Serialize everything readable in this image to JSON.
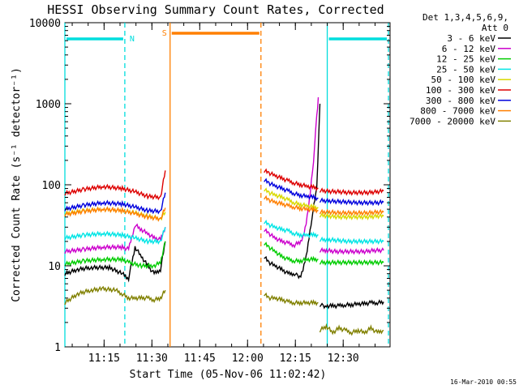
{
  "chart_data": {
    "type": "line",
    "title": "HESSI Observing Summary Count Rates, Corrected",
    "xlabel": "Start Time (05-Nov-06 11:02:42)",
    "ylabel": "Corrected Count Rate (s⁻¹ detector⁻¹)",
    "yscale": "log",
    "ylim": [
      1,
      10000
    ],
    "xlim_minutes": [
      0,
      102
    ],
    "x_ticks": [
      {
        "label": "11:15",
        "minute": 12.3
      },
      {
        "label": "11:30",
        "minute": 27.3
      },
      {
        "label": "11:45",
        "minute": 42.3
      },
      {
        "label": "12:00",
        "minute": 57.3
      },
      {
        "label": "12:15",
        "minute": 72.3
      },
      {
        "label": "12:30",
        "minute": 87.3
      }
    ],
    "y_ticks": [
      {
        "label": "1",
        "value": 1
      },
      {
        "label": "10",
        "value": 10
      },
      {
        "label": "100",
        "value": 100
      },
      {
        "label": "1000",
        "value": 1000
      },
      {
        "label": "10000",
        "value": 10000
      }
    ],
    "legend": {
      "header": [
        "Det 1,3,4,5,6,9,",
        "Att 0"
      ],
      "placement": "right"
    },
    "series": [
      {
        "name": "3 - 6 keV",
        "color": "#000000",
        "segments": [
          {
            "x": [
              0,
              4,
              8,
              14,
              18,
              20,
              22,
              24,
              26,
              28,
              30,
              31.5
            ],
            "y": [
              8,
              9,
              9.5,
              9.5,
              8,
              7,
              17,
              13,
              10,
              8,
              9,
              20
            ]
          },
          {
            "x": [
              62.5,
              64,
              66,
              68,
              70,
              72,
              73,
              74,
              75,
              76,
              77.5,
              79,
              80
            ],
            "y": [
              13,
              11,
              10,
              9,
              8,
              8,
              7.5,
              7.5,
              10,
              15,
              40,
              90,
              1000
            ]
          },
          {
            "x": [
              80,
              81,
              82,
              84,
              86,
              88,
              90,
              92,
              94,
              96,
              98,
              100
            ],
            "y": [
              3.3,
              3.2,
              3.2,
              3.2,
              3.2,
              3.3,
              3.3,
              3.4,
              3.4,
              3.5,
              3.5,
              3.6
            ]
          }
        ]
      },
      {
        "name": "6 - 12 keV",
        "color": "#cc00cc",
        "segments": [
          {
            "x": [
              0,
              6,
              12,
              18,
              20,
              22,
              24,
              26,
              28,
              30,
              31.5
            ],
            "y": [
              15,
              16,
              17,
              17,
              16,
              32,
              28,
              25,
              22,
              21,
              30
            ]
          },
          {
            "x": [
              62.5,
              64,
              66,
              68,
              70,
              72,
              74,
              75,
              76,
              77,
              78,
              79,
              79.5
            ],
            "y": [
              28,
              25,
              22,
              20,
              19,
              18,
              20,
              25,
              40,
              80,
              200,
              700,
              1200
            ]
          },
          {
            "x": [
              80,
              82,
              85,
              88,
              91,
              94,
              97,
              100
            ],
            "y": [
              15.5,
              15.5,
              15,
              15,
              15,
              15,
              15.5,
              15.5
            ]
          }
        ]
      },
      {
        "name": "12 - 25 keV",
        "color": "#00cc00",
        "segments": [
          {
            "x": [
              0,
              6,
              12,
              18,
              20,
              24,
              28,
              30,
              31.5
            ],
            "y": [
              10.5,
              11.5,
              12,
              12,
              11,
              10,
              10,
              11,
              20
            ]
          },
          {
            "x": [
              62.5,
              64,
              66,
              68,
              70,
              72,
              74,
              76,
              78,
              79.5
            ],
            "y": [
              19,
              17,
              15,
              13,
              12,
              11.5,
              11.5,
              12,
              12,
              12
            ]
          },
          {
            "x": [
              80,
              83,
              86,
              89,
              92,
              95,
              98,
              100
            ],
            "y": [
              11,
              11,
              11,
              11,
              11,
              11,
              11,
              11
            ]
          }
        ]
      },
      {
        "name": "25 - 50 keV",
        "color": "#00e5e5",
        "segments": [
          {
            "x": [
              0,
              6,
              12,
              18,
              22,
              26,
              30,
              31.5
            ],
            "y": [
              22,
              24,
              25,
              24,
              22,
              20,
              20,
              30
            ]
          },
          {
            "x": [
              62.5,
              64,
              66,
              68,
              70,
              72,
              74,
              76,
              78,
              79.5
            ],
            "y": [
              35,
              32,
              30,
              28,
              27,
              25,
              24,
              24,
              24,
              24
            ]
          },
          {
            "x": [
              80,
              83,
              86,
              89,
              92,
              95,
              98,
              100
            ],
            "y": [
              21,
              21,
              20.5,
              20,
              20,
              20,
              20,
              20
            ]
          }
        ]
      },
      {
        "name": "50 - 100 keV",
        "color": "#d9d900",
        "segments": [
          {
            "x": [
              0,
              6,
              12,
              18,
              22,
              26,
              30,
              31.5
            ],
            "y": [
              44,
              48,
              50,
              48,
              45,
              41,
              38,
              46
            ]
          },
          {
            "x": [
              62.5,
              64,
              66,
              68,
              70,
              72,
              74,
              76,
              78,
              79.5
            ],
            "y": [
              88,
              80,
              75,
              70,
              65,
              60,
              57,
              55,
              53,
              52
            ]
          },
          {
            "x": [
              80,
              83,
              86,
              89,
              92,
              95,
              98,
              100
            ],
            "y": [
              42,
              41,
              40,
              40,
              40,
              40,
              41,
              41
            ]
          }
        ]
      },
      {
        "name": "100 - 300 keV",
        "color": "#dd0000",
        "segments": [
          {
            "x": [
              0,
              6,
              12,
              18,
              22,
              26,
              30,
              31.5
            ],
            "y": [
              78,
              88,
              95,
              90,
              82,
              72,
              70,
              150
            ]
          },
          {
            "x": [
              62.5,
              64,
              66,
              68,
              70,
              72,
              74,
              76,
              78,
              79.5
            ],
            "y": [
              150,
              140,
              130,
              120,
              112,
              105,
              100,
              96,
              93,
              90
            ]
          },
          {
            "x": [
              80,
              83,
              86,
              89,
              92,
              95,
              98,
              100
            ],
            "y": [
              85,
              83,
              82,
              80,
              80,
              80,
              82,
              84
            ]
          }
        ]
      },
      {
        "name": "300 - 800 keV",
        "color": "#0000dd",
        "segments": [
          {
            "x": [
              0,
              6,
              12,
              18,
              22,
              26,
              30,
              31.5
            ],
            "y": [
              50,
              56,
              60,
              58,
              53,
              48,
              47,
              80
            ]
          },
          {
            "x": [
              62.5,
              64,
              66,
              68,
              70,
              72,
              74,
              76,
              78,
              79.5
            ],
            "y": [
              115,
              105,
              97,
              90,
              84,
              78,
              74,
              72,
              70,
              68
            ]
          },
          {
            "x": [
              80,
              83,
              86,
              89,
              92,
              95,
              98,
              100
            ],
            "y": [
              64,
              63,
              62,
              61,
              60,
              60,
              60,
              61
            ]
          }
        ]
      },
      {
        "name": "800 - 7000 keV",
        "color": "#ff7f00",
        "segments": [
          {
            "x": [
              0,
              6,
              12,
              18,
              22,
              26,
              30,
              31.5
            ],
            "y": [
              43,
              47,
              50,
              48,
              44,
              40,
              38,
              52
            ]
          },
          {
            "x": [
              62.5,
              64,
              66,
              68,
              70,
              72,
              74,
              76,
              78,
              79.5
            ],
            "y": [
              70,
              65,
              61,
              58,
              55,
              53,
              51,
              50,
              49,
              48
            ]
          },
          {
            "x": [
              80,
              83,
              86,
              89,
              92,
              95,
              98,
              100
            ],
            "y": [
              46,
              46,
              45,
              45,
              45,
              45,
              46,
              46
            ]
          }
        ]
      },
      {
        "name": "7000 - 20000 keV",
        "color": "#808000",
        "segments": [
          {
            "x": [
              0,
              4,
              8,
              12,
              16,
              18,
              20,
              22,
              24,
              26,
              28,
              30,
              31.5
            ],
            "y": [
              3.5,
              4.5,
              5,
              5.2,
              5,
              4.5,
              4,
              4,
              4,
              4,
              3.8,
              4,
              5
            ]
          },
          {
            "x": [
              62.5,
              64,
              66,
              68,
              70,
              72,
              74,
              76,
              78,
              79.5
            ],
            "y": [
              4.5,
              4,
              4,
              3.8,
              3.6,
              3.5,
              3.5,
              3.5,
              3.5,
              3.5
            ]
          },
          {
            "x": [
              80,
              82,
              84,
              86,
              88,
              90,
              92,
              94,
              96,
              98,
              100
            ],
            "y": [
              1.6,
              1.8,
              1.5,
              1.7,
              1.6,
              1.5,
              1.6,
              1.5,
              1.7,
              1.5,
              1.6
            ]
          }
        ]
      }
    ],
    "annotations": [
      {
        "label": "N",
        "color": "#00dddd",
        "type": "night",
        "intervals_minutes": [
          [
            0,
            18.8
          ],
          [
            82.3,
            101.5
          ]
        ]
      },
      {
        "label": "S",
        "color": "#ff7f00",
        "type": "saa",
        "interval_minutes": [
          33.0,
          61.5
        ]
      }
    ],
    "gap_minutes": [
      32.0,
      62.3
    ],
    "vlines": [
      {
        "minute": 0,
        "color": "#00dddd",
        "style": "solid"
      },
      {
        "minute": 18.8,
        "color": "#00dddd",
        "style": "dashed"
      },
      {
        "minute": 33.0,
        "color": "#ff7f00",
        "style": "solid"
      },
      {
        "minute": 61.5,
        "color": "#ff7f00",
        "style": "dashed"
      },
      {
        "minute": 82.3,
        "color": "#00dddd",
        "style": "solid"
      },
      {
        "minute": 101.5,
        "color": "#00dddd",
        "style": "dashed"
      }
    ]
  },
  "footer": {
    "timestamp": "16-Mar-2010 00:55"
  }
}
